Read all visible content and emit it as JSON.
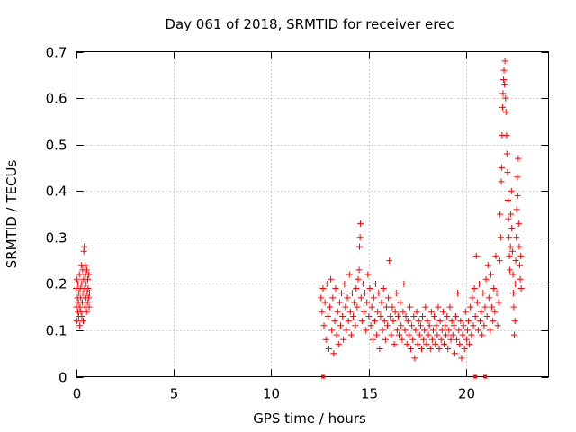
{
  "chart_data": {
    "type": "scatter",
    "title": "Day 061 of 2018, SRMTID for receiver erec",
    "xlabel": "GPS time / hours",
    "ylabel": "SRMTID / TECUs",
    "xlim": [
      0,
      24.2
    ],
    "ylim": [
      0,
      0.7
    ],
    "xticks": [
      0,
      5,
      10,
      15,
      20
    ],
    "xtick_labels": [
      "0",
      "5",
      "10",
      "15",
      "20"
    ],
    "yticks": [
      0,
      0.1,
      0.2,
      0.3,
      0.4,
      0.5,
      0.6,
      0.7
    ],
    "ytick_labels": [
      "0",
      "0.1",
      "0.2",
      "0.3",
      "0.4",
      "0.5",
      "0.6",
      "0.7"
    ],
    "grid": true,
    "marker": "+",
    "color": "#ff0000",
    "zero_markers": [
      12.65,
      20.45,
      20.95
    ],
    "series": [
      {
        "name": "SRMTID",
        "points": [
          [
            0.0,
            0.19
          ],
          [
            0.02,
            0.15
          ],
          [
            0.04,
            0.21
          ],
          [
            0.05,
            0.12
          ],
          [
            0.07,
            0.17
          ],
          [
            0.09,
            0.14
          ],
          [
            0.1,
            0.2
          ],
          [
            0.12,
            0.16
          ],
          [
            0.14,
            0.13
          ],
          [
            0.15,
            0.18
          ],
          [
            0.17,
            0.22
          ],
          [
            0.19,
            0.11
          ],
          [
            0.2,
            0.15
          ],
          [
            0.22,
            0.19
          ],
          [
            0.24,
            0.17
          ],
          [
            0.25,
            0.14
          ],
          [
            0.27,
            0.24
          ],
          [
            0.29,
            0.2
          ],
          [
            0.3,
            0.13
          ],
          [
            0.32,
            0.16
          ],
          [
            0.34,
            0.23
          ],
          [
            0.35,
            0.18
          ],
          [
            0.37,
            0.12
          ],
          [
            0.39,
            0.21
          ],
          [
            0.4,
            0.27
          ],
          [
            0.42,
            0.28
          ],
          [
            0.44,
            0.19
          ],
          [
            0.45,
            0.15
          ],
          [
            0.47,
            0.24
          ],
          [
            0.49,
            0.22
          ],
          [
            0.5,
            0.17
          ],
          [
            0.52,
            0.2
          ],
          [
            0.54,
            0.14
          ],
          [
            0.55,
            0.23
          ],
          [
            0.57,
            0.18
          ],
          [
            0.59,
            0.16
          ],
          [
            0.6,
            0.21
          ],
          [
            0.62,
            0.19
          ],
          [
            0.64,
            0.17
          ],
          [
            0.65,
            0.22
          ],
          [
            0.67,
            0.15
          ],
          [
            0.69,
            0.18
          ],
          [
            12.55,
            0.17
          ],
          [
            12.6,
            0.14
          ],
          [
            12.65,
            0.19
          ],
          [
            12.7,
            0.11
          ],
          [
            12.75,
            0.16
          ],
          [
            12.8,
            0.08
          ],
          [
            12.85,
            0.2
          ],
          [
            12.9,
            0.13
          ],
          [
            12.95,
            0.06
          ],
          [
            13.0,
            0.15
          ],
          [
            13.05,
            0.21
          ],
          [
            13.1,
            0.1
          ],
          [
            13.15,
            0.17
          ],
          [
            13.2,
            0.05
          ],
          [
            13.25,
            0.12
          ],
          [
            13.3,
            0.19
          ],
          [
            13.35,
            0.09
          ],
          [
            13.4,
            0.14
          ],
          [
            13.45,
            0.07
          ],
          [
            13.5,
            0.16
          ],
          [
            13.55,
            0.11
          ],
          [
            13.6,
            0.18
          ],
          [
            13.65,
            0.13
          ],
          [
            13.7,
            0.08
          ],
          [
            13.75,
            0.2
          ],
          [
            13.8,
            0.15
          ],
          [
            13.85,
            0.1
          ],
          [
            13.9,
            0.17
          ],
          [
            13.95,
            0.12
          ],
          [
            14.0,
            0.22
          ],
          [
            14.05,
            0.14
          ],
          [
            14.1,
            0.09
          ],
          [
            14.15,
            0.18
          ],
          [
            14.2,
            0.13
          ],
          [
            14.25,
            0.16
          ],
          [
            14.3,
            0.11
          ],
          [
            14.35,
            0.19
          ],
          [
            14.4,
            0.15
          ],
          [
            14.45,
            0.21
          ],
          [
            14.5,
            0.23
          ],
          [
            14.52,
            0.28
          ],
          [
            14.55,
            0.3
          ],
          [
            14.57,
            0.33
          ],
          [
            14.6,
            0.17
          ],
          [
            14.65,
            0.12
          ],
          [
            14.7,
            0.2
          ],
          [
            14.75,
            0.14
          ],
          [
            14.8,
            0.18
          ],
          [
            14.85,
            0.1
          ],
          [
            14.9,
            0.16
          ],
          [
            14.95,
            0.22
          ],
          [
            15.0,
            0.13
          ],
          [
            15.05,
            0.19
          ],
          [
            15.1,
            0.11
          ],
          [
            15.15,
            0.15
          ],
          [
            15.2,
            0.08
          ],
          [
            15.25,
            0.17
          ],
          [
            15.3,
            0.12
          ],
          [
            15.35,
            0.2
          ],
          [
            15.4,
            0.09
          ],
          [
            15.45,
            0.14
          ],
          [
            15.5,
            0.18
          ],
          [
            15.55,
            0.06
          ],
          [
            15.6,
            0.13
          ],
          [
            15.65,
            0.16
          ],
          [
            15.7,
            0.1
          ],
          [
            15.75,
            0.19
          ],
          [
            15.8,
            0.12
          ],
          [
            15.85,
            0.08
          ],
          [
            15.9,
            0.15
          ],
          [
            15.95,
            0.11
          ],
          [
            16.0,
            0.17
          ],
          [
            16.05,
            0.25
          ],
          [
            16.1,
            0.13
          ],
          [
            16.15,
            0.09
          ],
          [
            16.2,
            0.15
          ],
          [
            16.25,
            0.12
          ],
          [
            16.3,
            0.07
          ],
          [
            16.35,
            0.14
          ],
          [
            16.4,
            0.18
          ],
          [
            16.45,
            0.1
          ],
          [
            16.5,
            0.13
          ],
          [
            16.55,
            0.09
          ],
          [
            16.6,
            0.16
          ],
          [
            16.65,
            0.11
          ],
          [
            16.7,
            0.08
          ],
          [
            16.75,
            0.14
          ],
          [
            16.8,
            0.2
          ],
          [
            16.85,
            0.1
          ],
          [
            16.9,
            0.13
          ],
          [
            16.95,
            0.07
          ],
          [
            17.0,
            0.12
          ],
          [
            17.05,
            0.09
          ],
          [
            17.1,
            0.15
          ],
          [
            17.15,
            0.06
          ],
          [
            17.2,
            0.11
          ],
          [
            17.25,
            0.08
          ],
          [
            17.3,
            0.13
          ],
          [
            17.35,
            0.04
          ],
          [
            17.4,
            0.1
          ],
          [
            17.45,
            0.14
          ],
          [
            17.5,
            0.07
          ],
          [
            17.55,
            0.12
          ],
          [
            17.6,
            0.09
          ],
          [
            17.65,
            0.11
          ],
          [
            17.7,
            0.06
          ],
          [
            17.75,
            0.13
          ],
          [
            17.8,
            0.08
          ],
          [
            17.85,
            0.1
          ],
          [
            17.9,
            0.15
          ],
          [
            17.95,
            0.07
          ],
          [
            18.0,
            0.12
          ],
          [
            18.05,
            0.09
          ],
          [
            18.1,
            0.11
          ],
          [
            18.15,
            0.06
          ],
          [
            18.2,
            0.14
          ],
          [
            18.25,
            0.08
          ],
          [
            18.3,
            0.1
          ],
          [
            18.35,
            0.13
          ],
          [
            18.4,
            0.07
          ],
          [
            18.45,
            0.11
          ],
          [
            18.5,
            0.09
          ],
          [
            18.55,
            0.15
          ],
          [
            18.6,
            0.06
          ],
          [
            18.65,
            0.12
          ],
          [
            18.7,
            0.08
          ],
          [
            18.75,
            0.1
          ],
          [
            18.8,
            0.14
          ],
          [
            18.85,
            0.07
          ],
          [
            18.9,
            0.11
          ],
          [
            18.95,
            0.09
          ],
          [
            19.0,
            0.13
          ],
          [
            19.05,
            0.06
          ],
          [
            19.1,
            0.1
          ],
          [
            19.15,
            0.15
          ],
          [
            19.2,
            0.08
          ],
          [
            19.25,
            0.12
          ],
          [
            19.3,
            0.09
          ],
          [
            19.35,
            0.11
          ],
          [
            19.4,
            0.05
          ],
          [
            19.45,
            0.13
          ],
          [
            19.5,
            0.08
          ],
          [
            19.55,
            0.18
          ],
          [
            19.6,
            0.1
          ],
          [
            19.65,
            0.07
          ],
          [
            19.7,
            0.12
          ],
          [
            19.75,
            0.04
          ],
          [
            19.8,
            0.09
          ],
          [
            19.85,
            0.11
          ],
          [
            19.9,
            0.06
          ],
          [
            19.95,
            0.14
          ],
          [
            20.0,
            0.08
          ],
          [
            20.05,
            0.1
          ],
          [
            20.1,
            0.12
          ],
          [
            20.15,
            0.07
          ],
          [
            20.2,
            0.15
          ],
          [
            20.25,
            0.09
          ],
          [
            20.3,
            0.17
          ],
          [
            20.35,
            0.11
          ],
          [
            20.4,
            0.19
          ],
          [
            20.45,
            0.13
          ],
          [
            20.5,
            0.26
          ],
          [
            20.55,
            0.16
          ],
          [
            20.6,
            0.1
          ],
          [
            20.65,
            0.2
          ],
          [
            20.7,
            0.12
          ],
          [
            20.75,
            0.14
          ],
          [
            20.8,
            0.09
          ],
          [
            20.85,
            0.18
          ],
          [
            20.9,
            0.11
          ],
          [
            20.95,
            0.15
          ],
          [
            21.0,
            0.21
          ],
          [
            21.05,
            0.13
          ],
          [
            21.1,
            0.24
          ],
          [
            21.15,
            0.17
          ],
          [
            21.2,
            0.1
          ],
          [
            21.25,
            0.22
          ],
          [
            21.3,
            0.15
          ],
          [
            21.35,
            0.12
          ],
          [
            21.4,
            0.19
          ],
          [
            21.45,
            0.14
          ],
          [
            21.5,
            0.26
          ],
          [
            21.55,
            0.18
          ],
          [
            21.6,
            0.11
          ],
          [
            21.65,
            0.16
          ],
          [
            21.7,
            0.25
          ],
          [
            21.72,
            0.35
          ],
          [
            21.75,
            0.3
          ],
          [
            21.78,
            0.42
          ],
          [
            21.8,
            0.45
          ],
          [
            21.82,
            0.52
          ],
          [
            21.85,
            0.58
          ],
          [
            21.87,
            0.61
          ],
          [
            21.9,
            0.64
          ],
          [
            21.92,
            0.66
          ],
          [
            21.95,
            0.63
          ],
          [
            21.97,
            0.68
          ],
          [
            22.0,
            0.6
          ],
          [
            22.02,
            0.57
          ],
          [
            22.05,
            0.52
          ],
          [
            22.07,
            0.48
          ],
          [
            22.1,
            0.44
          ],
          [
            22.12,
            0.38
          ],
          [
            22.15,
            0.34
          ],
          [
            22.18,
            0.3
          ],
          [
            22.2,
            0.26
          ],
          [
            22.22,
            0.23
          ],
          [
            22.25,
            0.28
          ],
          [
            22.27,
            0.35
          ],
          [
            22.3,
            0.4
          ],
          [
            22.32,
            0.32
          ],
          [
            22.35,
            0.27
          ],
          [
            22.38,
            0.22
          ],
          [
            22.4,
            0.18
          ],
          [
            22.42,
            0.15
          ],
          [
            22.45,
            0.09
          ],
          [
            22.48,
            0.12
          ],
          [
            22.5,
            0.2
          ],
          [
            22.52,
            0.25
          ],
          [
            22.55,
            0.3
          ],
          [
            22.57,
            0.36
          ],
          [
            22.6,
            0.43
          ],
          [
            22.62,
            0.39
          ],
          [
            22.65,
            0.47
          ],
          [
            22.67,
            0.33
          ],
          [
            22.7,
            0.28
          ],
          [
            22.72,
            0.24
          ],
          [
            22.75,
            0.21
          ],
          [
            22.78,
            0.26
          ],
          [
            22.8,
            0.19
          ]
        ]
      }
    ]
  }
}
